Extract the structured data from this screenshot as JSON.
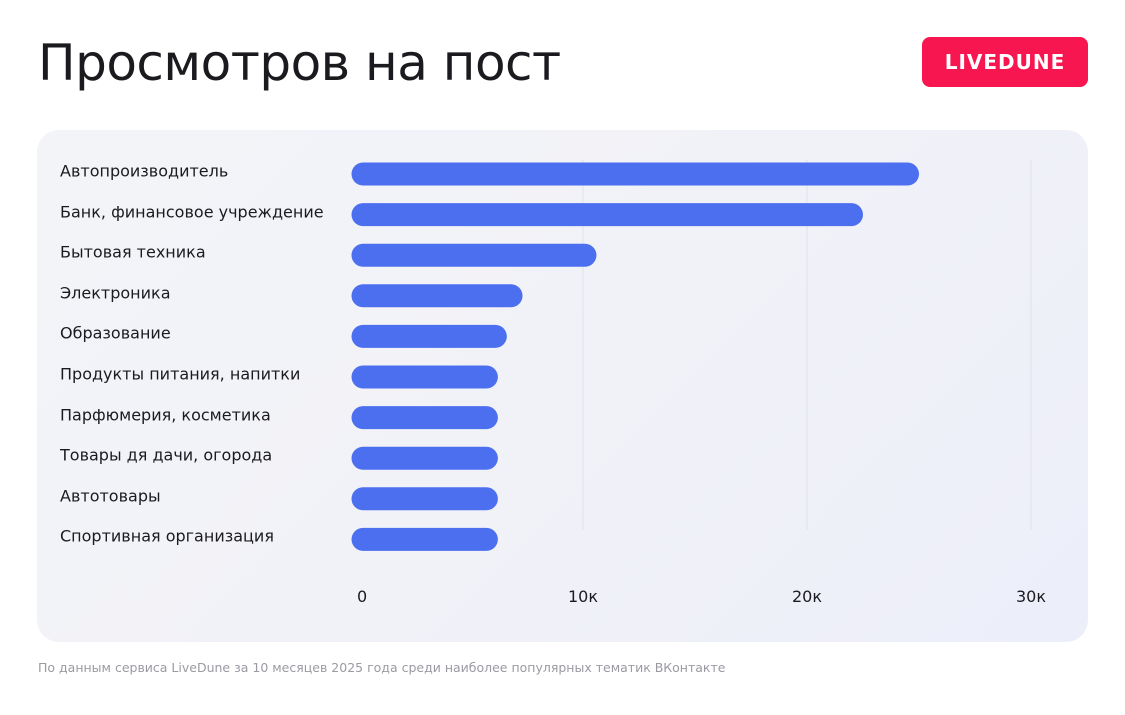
{
  "header": {
    "title": "Просмотров на пост",
    "brand": "LIVEDUNE"
  },
  "colors": {
    "bar": "#4c6ff0",
    "brand": "#f7164f",
    "grid": "#e0e2ec"
  },
  "chart_data": {
    "type": "bar",
    "orientation": "horizontal",
    "categories": [
      "Автопроизводитель",
      "Банк, финансовое учреждение",
      "Бытовая техника",
      "Электроника",
      "Образование",
      "Продукты питания, напитки",
      "Парфюмерия, косметика",
      "Товары дя дачи, огорода",
      "Автотовары",
      "Спортивная организация"
    ],
    "values": [
      25000,
      22500,
      10600,
      7300,
      6600,
      6200,
      6200,
      6200,
      6200,
      6200
    ],
    "xticks": [
      0,
      10000,
      20000,
      30000
    ],
    "xtick_labels": [
      "0",
      "10к",
      "20к",
      "30к"
    ],
    "xlim": [
      0,
      30000
    ],
    "grid": "vertical",
    "legend": "none"
  },
  "footnote": "По данным сервиса LiveDune за 10 месяцев 2025 года среди наиболее популярных тематик ВКонтакте"
}
